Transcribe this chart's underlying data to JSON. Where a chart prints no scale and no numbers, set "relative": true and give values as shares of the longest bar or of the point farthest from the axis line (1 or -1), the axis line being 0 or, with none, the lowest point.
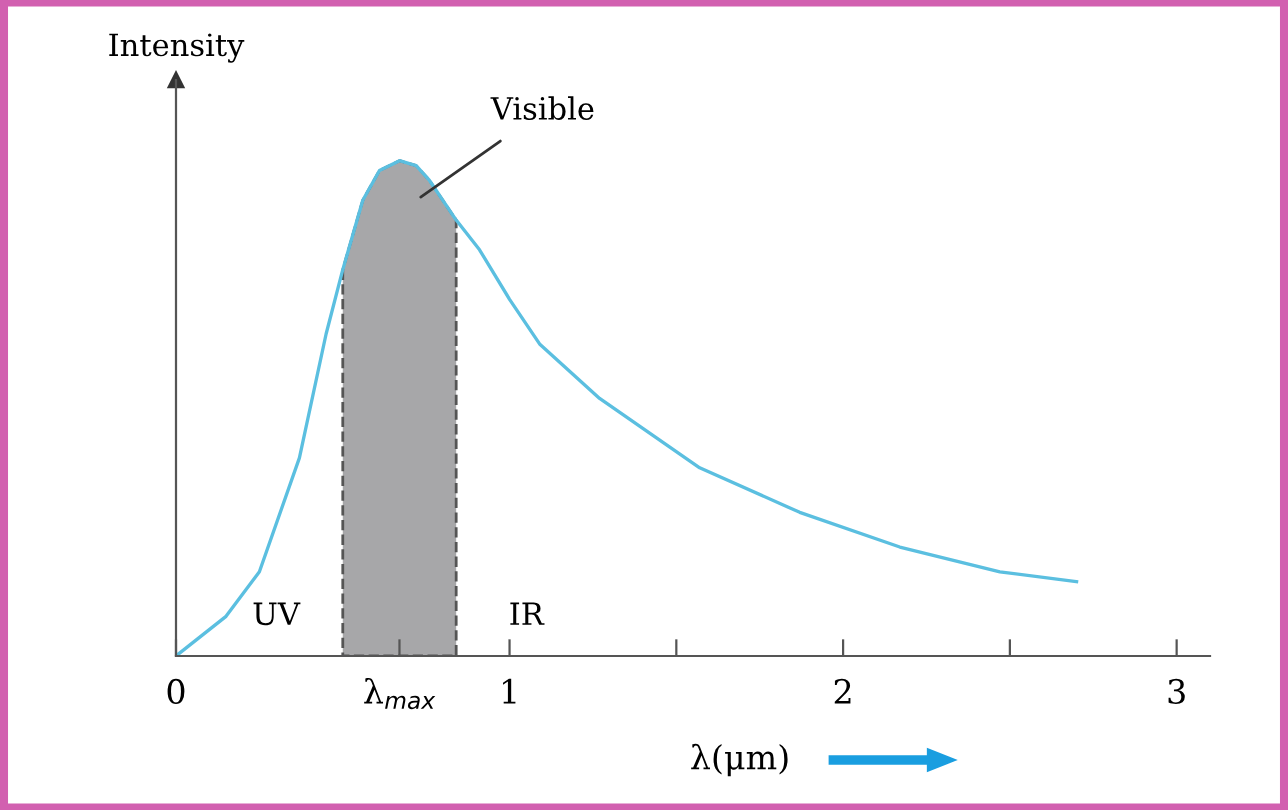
{
  "chart_data": {
    "type": "line",
    "relative": true,
    "ylabel": "Intensity",
    "xlabel": "λ(μm)",
    "xlim": [
      0,
      3.1
    ],
    "xticks": [
      0,
      {
        "value": 0.67,
        "label": "λ$_{max}$"
      },
      1,
      {
        "value": 1.5,
        "label": null
      },
      2,
      {
        "value": 2.5,
        "label": null
      },
      3
    ],
    "series": [
      {
        "color": "#5bbfe0",
        "x": [
          0,
          0.15,
          0.25,
          0.37,
          0.45,
          0.5,
          0.56,
          0.61,
          0.67,
          0.72,
          0.76,
          0.84,
          0.91,
          1.0,
          1.09,
          1.27,
          1.57,
          1.87,
          2.17,
          2.47,
          2.7
        ],
        "values": [
          0,
          0.08,
          0.17,
          0.4,
          0.65,
          0.78,
          0.92,
          0.98,
          1.0,
          0.99,
          0.96,
          0.88,
          0.82,
          0.72,
          0.63,
          0.52,
          0.38,
          0.29,
          0.22,
          0.17,
          0.15
        ]
      },
      {
        "type": "area",
        "color": "#a7a7a9",
        "line_style": "dashed",
        "x": [
          0.5,
          0.56,
          0.61,
          0.67,
          0.72,
          0.76,
          0.84
        ],
        "values": [
          0.78,
          0.92,
          0.98,
          1.0,
          0.99,
          0.96,
          0.88
        ]
      }
    ],
    "annotations": [
      "Visible",
      "UV",
      "IR"
    ],
    "grid": false
  }
}
